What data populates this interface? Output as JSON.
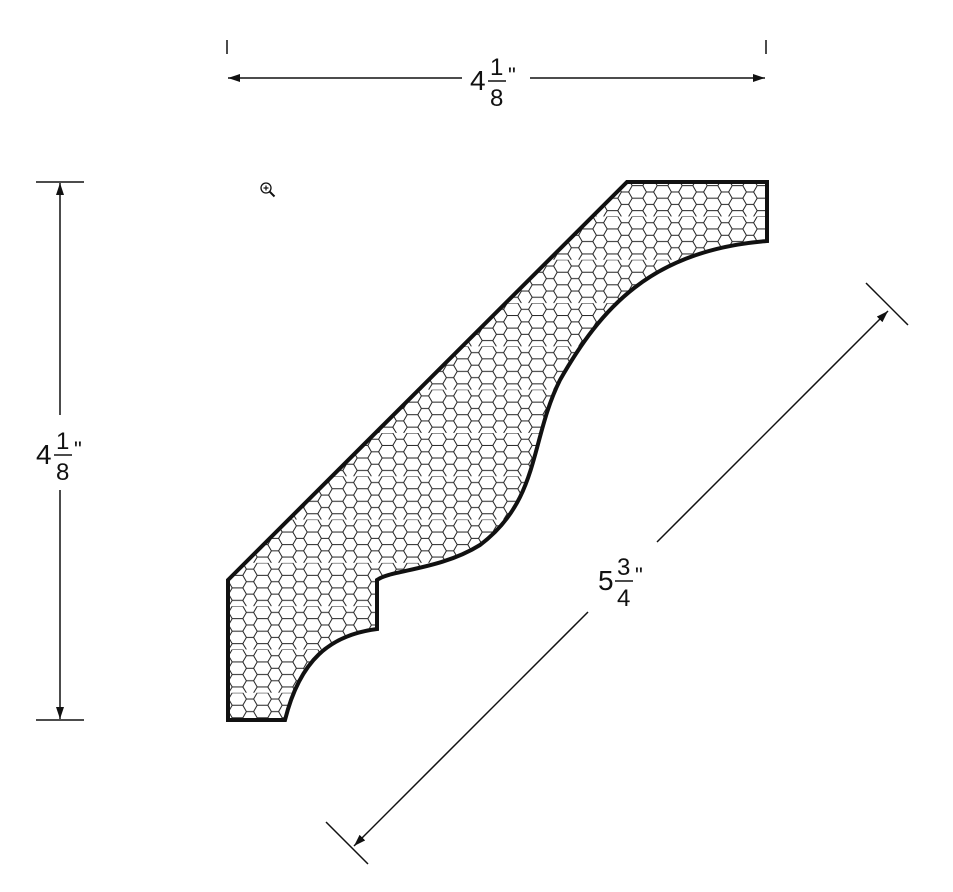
{
  "figure": {
    "subject": "crown moulding profile",
    "hatch_pattern": "hexagon",
    "line_color": "#111111",
    "background_color": "#ffffff"
  },
  "dimensions": {
    "width": {
      "whole": "4",
      "numerator": "1",
      "denominator": "8",
      "unit": "\""
    },
    "height": {
      "whole": "4",
      "numerator": "1",
      "denominator": "8",
      "unit": "\""
    },
    "diagonal": {
      "whole": "5",
      "numerator": "3",
      "denominator": "4",
      "unit": "\""
    }
  },
  "icons": {
    "zoom": "zoom-in-icon"
  }
}
